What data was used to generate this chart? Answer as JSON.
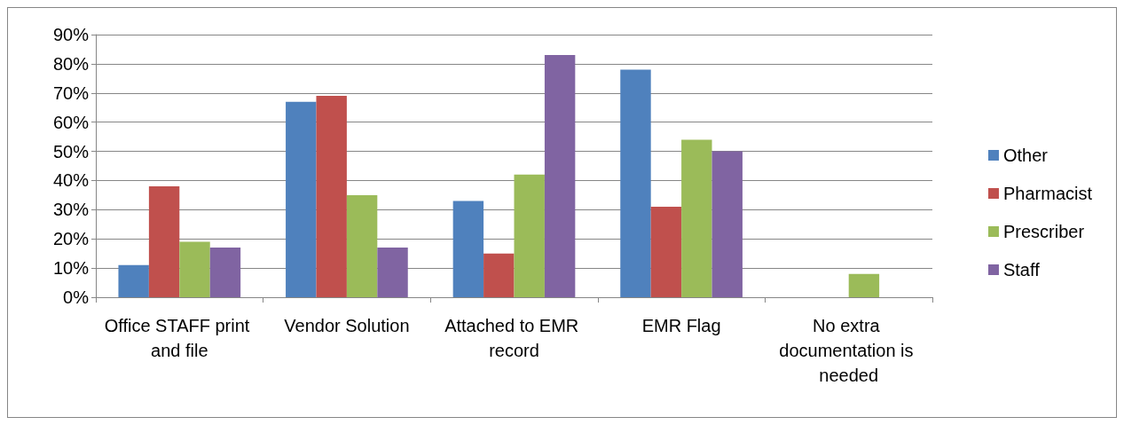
{
  "chart_data": {
    "type": "bar",
    "categories": [
      "Office STAFF print and file",
      "Vendor Solution",
      "Attached to EMR record",
      "EMR Flag",
      "No extra documentation is needed"
    ],
    "series": [
      {
        "name": "Other",
        "color": "#4f81bd",
        "values": [
          11,
          67,
          33,
          78,
          0
        ]
      },
      {
        "name": "Pharmacist",
        "color": "#c0504d",
        "values": [
          38,
          69,
          15,
          31,
          0
        ]
      },
      {
        "name": "Prescriber",
        "color": "#9bbb59",
        "values": [
          19,
          35,
          42,
          54,
          8
        ]
      },
      {
        "name": "Staff",
        "color": "#8064a2",
        "values": [
          17,
          17,
          83,
          50,
          0
        ]
      }
    ],
    "ylim": [
      0,
      90
    ],
    "yticks": [
      {
        "value": 0,
        "label": "0%"
      },
      {
        "value": 10,
        "label": "10%"
      },
      {
        "value": 20,
        "label": "20%"
      },
      {
        "value": 30,
        "label": "30%"
      },
      {
        "value": 40,
        "label": "40%"
      },
      {
        "value": 50,
        "label": "50%"
      },
      {
        "value": 60,
        "label": "60%"
      },
      {
        "value": 70,
        "label": "70%"
      },
      {
        "value": 80,
        "label": "80%"
      },
      {
        "value": 90,
        "label": "90%"
      }
    ],
    "grid": "y",
    "legend": "right"
  }
}
